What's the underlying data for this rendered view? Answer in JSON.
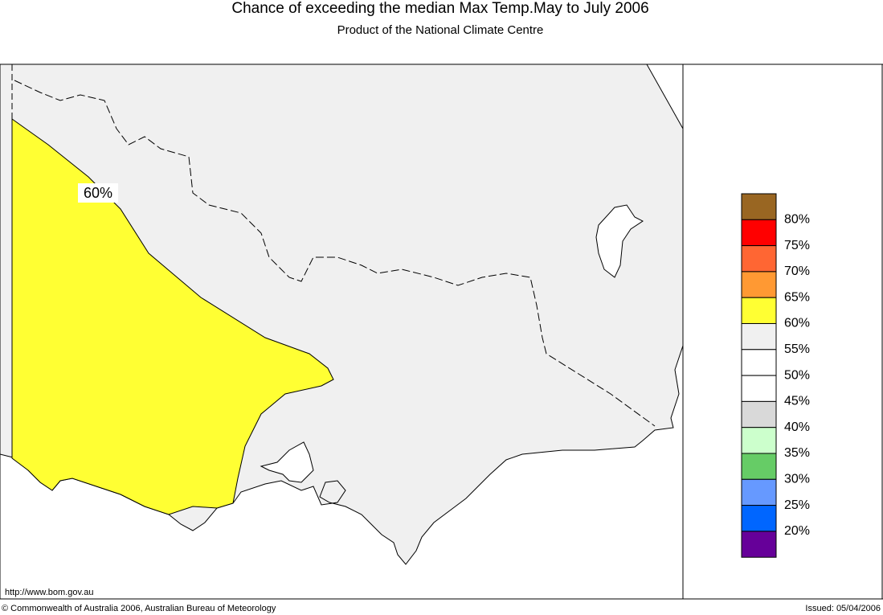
{
  "header": {
    "title": "Chance of exceeding the median Max Temp.May to July 2006",
    "subtitle": "Product of the National Climate Centre"
  },
  "map": {
    "contour_label": "60%",
    "url": "http://www.bom.gov.au"
  },
  "legend": {
    "colors": [
      "#996622",
      "#ff0000",
      "#ff6633",
      "#ff9933",
      "#ffff33",
      "#f0f0f0",
      "#ffffff",
      "#ffffff",
      "#d9d9d9",
      "#ccffcc",
      "#66cc66",
      "#6699ff",
      "#0066ff",
      "#660099"
    ],
    "labels": [
      "80%",
      "75%",
      "70%",
      "65%",
      "60%",
      "55%",
      "50%",
      "45%",
      "40%",
      "35%",
      "30%",
      "25%",
      "20%"
    ]
  },
  "footer": {
    "copyright": "© Commonwealth of Australia 2006, Australian Bureau of Meteorology",
    "issued": "Issued: 05/04/2006"
  }
}
